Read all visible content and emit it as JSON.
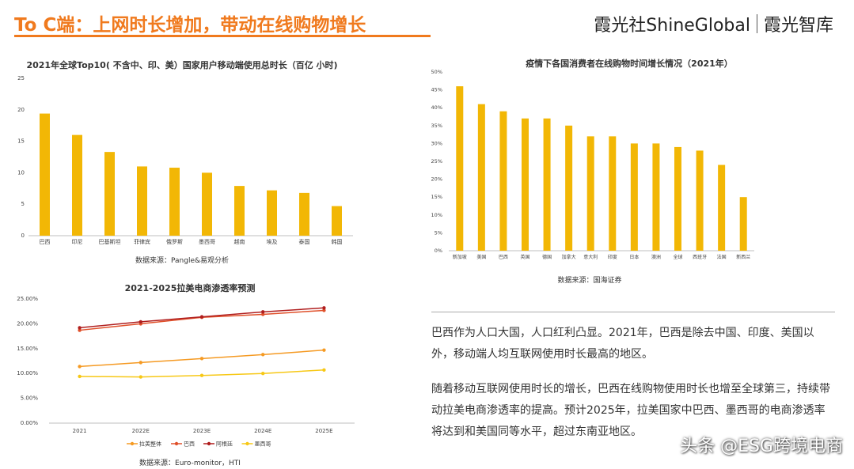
{
  "header": {
    "title": "To C端：上网时长增加，带动在线购物增长",
    "brand_left": "霞光社ShineGlobal",
    "brand_right": "霞光智库"
  },
  "colors": {
    "accent": "#F07A1E",
    "bar": "#F2B705",
    "series_lat": "#F59A23",
    "series_bra": "#E0502A",
    "series_arg": "#B01E1E",
    "series_mex": "#F7C816"
  },
  "chart1": {
    "title": "2021年全球Top10( 不含中、印、美）国家用户移动端使用总时长（百亿 小时)",
    "source": "数据来源：Pangle&易观分析"
  },
  "chart2": {
    "title": "疫情下各国消费者在线购物时间增长情况（2021年）",
    "source": "数据来源：国海证券"
  },
  "chart3": {
    "title": "2021-2025拉美电商渗透率预测",
    "source": "数据来源：Euro-monitor，HTI"
  },
  "text": {
    "para1": "巴西作为人口大国，人口红利凸显。2021年，巴西是除去中国、印度、美国以外，移动端人均互联网使用时长最高的地区。",
    "para2": "随着移动互联网使用时长的增长，巴西在线购物使用时长也增至全球第三，持续带动拉美电商渗透率的提高。预计2025年，拉美国家中巴西、墨西哥的电商渗透率将达到和美国同等水平，超过东南亚地区。"
  },
  "watermark": "头条 @ESG跨境电商",
  "chart_data": [
    {
      "type": "bar",
      "title": "2021年全球Top10( 不含中、印、美）国家用户移动端使用总时长（百亿 小时)",
      "categories": [
        "巴西",
        "印尼",
        "巴基斯坦",
        "菲律宾",
        "俄罗斯",
        "墨西哥",
        "越南",
        "埃及",
        "泰国",
        "韩国"
      ],
      "values": [
        19.4,
        16.0,
        13.3,
        11.0,
        10.8,
        10.0,
        7.9,
        7.2,
        6.8,
        4.7
      ],
      "ylim": [
        0,
        25
      ],
      "yticks": [
        0,
        5,
        10,
        15,
        20,
        25
      ],
      "ytick_labels": [
        "0",
        "5",
        "10",
        "15",
        "20",
        "25"
      ],
      "grid": false
    },
    {
      "type": "bar",
      "title": "疫情下各国消费者在线购物时间增长情况（2021年）",
      "categories": [
        "新加坡",
        "美国",
        "巴西",
        "英国",
        "德国",
        "加拿大",
        "意大利",
        "印度",
        "日本",
        "澳洲",
        "全球",
        "西班牙",
        "法国",
        "新西兰"
      ],
      "values": [
        46,
        41,
        39,
        37,
        37,
        35,
        32,
        32,
        30,
        30,
        29,
        28,
        24,
        15
      ],
      "ylim": [
        0,
        50
      ],
      "yticks": [
        0,
        5,
        10,
        15,
        20,
        25,
        30,
        35,
        40,
        45,
        50
      ],
      "ytick_labels": [
        "0%",
        "5%",
        "10%",
        "15%",
        "20%",
        "25%",
        "30%",
        "35%",
        "40%",
        "45%",
        "50%"
      ],
      "grid": false
    },
    {
      "type": "line",
      "title": "2021-2025拉美电商渗透率预测",
      "x": [
        "2021",
        "2022E",
        "2023E",
        "2024E",
        "2025E"
      ],
      "series": [
        {
          "name": "拉美整体",
          "values": [
            11.4,
            12.2,
            13.0,
            13.8,
            14.7
          ]
        },
        {
          "name": "巴西",
          "values": [
            18.7,
            20.0,
            21.3,
            21.9,
            22.7
          ]
        },
        {
          "name": "阿根廷",
          "values": [
            19.2,
            20.4,
            21.4,
            22.4,
            23.2
          ]
        },
        {
          "name": "墨西哥",
          "values": [
            9.4,
            9.3,
            9.6,
            10.0,
            10.7
          ]
        }
      ],
      "ylim": [
        0,
        25
      ],
      "yticks": [
        0,
        5,
        10,
        15,
        20,
        25
      ],
      "ytick_labels": [
        "0.00%",
        "5.00%",
        "10.00%",
        "15.00%",
        "20.00%",
        "25.00%"
      ],
      "legend": "bottom",
      "grid": false
    }
  ]
}
